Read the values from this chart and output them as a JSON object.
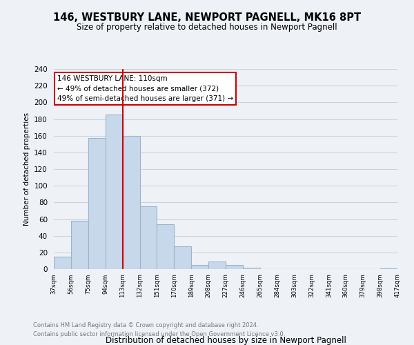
{
  "title": "146, WESTBURY LANE, NEWPORT PAGNELL, MK16 8PT",
  "subtitle": "Size of property relative to detached houses in Newport Pagnell",
  "xlabel": "Distribution of detached houses by size in Newport Pagnell",
  "ylabel": "Number of detached properties",
  "bar_values": [
    15,
    58,
    157,
    185,
    160,
    75,
    54,
    27,
    5,
    9,
    5,
    2,
    0,
    0,
    0,
    0,
    0,
    0,
    0,
    1
  ],
  "bar_labels": [
    "37sqm",
    "56sqm",
    "75sqm",
    "94sqm",
    "113sqm",
    "132sqm",
    "151sqm",
    "170sqm",
    "189sqm",
    "208sqm",
    "227sqm",
    "246sqm",
    "265sqm",
    "284sqm",
    "303sqm",
    "322sqm",
    "341sqm",
    "360sqm",
    "379sqm",
    "398sqm",
    "417sqm"
  ],
  "bar_color": "#c8d8eb",
  "bar_edge_color": "#9ab4cc",
  "vline_color": "#cc0000",
  "annotation_title": "146 WESTBURY LANE: 110sqm",
  "annotation_line1": "← 49% of detached houses are smaller (372)",
  "annotation_line2": "49% of semi-detached houses are larger (371) →",
  "footer_line1": "Contains HM Land Registry data © Crown copyright and database right 2024.",
  "footer_line2": "Contains public sector information licensed under the Open Government Licence v3.0.",
  "bg_color": "#eef2f7",
  "grid_color": "#c8d4e0",
  "ylim": [
    0,
    240
  ],
  "yticks": [
    0,
    20,
    40,
    60,
    80,
    100,
    120,
    140,
    160,
    180,
    200,
    220,
    240
  ]
}
